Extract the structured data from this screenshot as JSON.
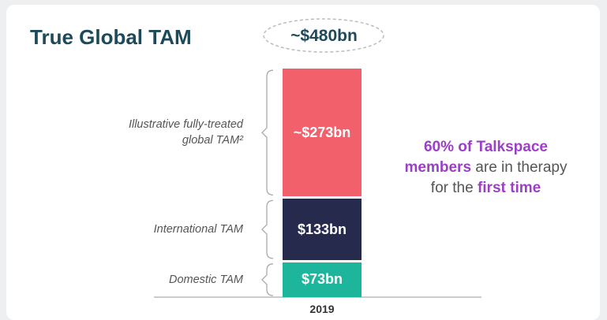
{
  "chart_data": {
    "type": "bar",
    "stacked": true,
    "title": "True Global TAM",
    "total_label": "~$480bn",
    "categories": [
      "2019"
    ],
    "series": [
      {
        "name": "Domestic TAM",
        "color": "#1db59b",
        "values": [
          73
        ],
        "value_labels": [
          "$73bn"
        ]
      },
      {
        "name": "International TAM",
        "color": "#262a4c",
        "values": [
          133
        ],
        "value_labels": [
          "$133bn"
        ]
      },
      {
        "name": "Illustrative fully-treated global TAM²",
        "color": "#f2606c",
        "values": [
          273
        ],
        "value_labels": [
          "~$273bn"
        ]
      }
    ],
    "annotation": [
      {
        "text": "60% of Talkspace members",
        "highlight": true
      },
      {
        "text": " are in therapy for the ",
        "highlight": false
      },
      {
        "text": "first time",
        "highlight": true
      }
    ]
  }
}
